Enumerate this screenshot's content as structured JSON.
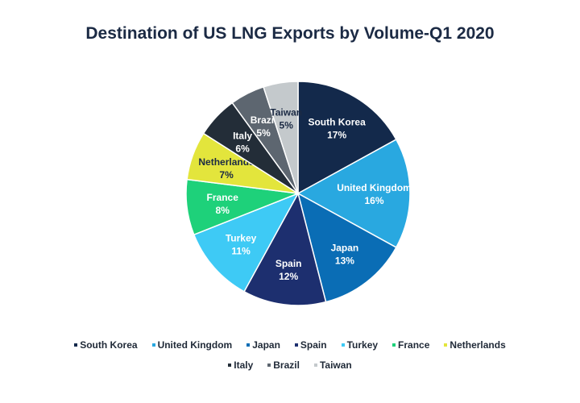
{
  "chart_data": {
    "type": "pie",
    "title": "Destination of US LNG Exports by Volume-Q1 2020",
    "categories": [
      "South Korea",
      "United Kingdom",
      "Japan",
      "Spain",
      "Turkey",
      "France",
      "Netherlands",
      "Italy",
      "Brazil",
      "Taiwan"
    ],
    "values": [
      17,
      16,
      13,
      12,
      11,
      8,
      7,
      6,
      5,
      5
    ],
    "value_labels": [
      "17%",
      "16%",
      "13%",
      "12%",
      "11%",
      "8%",
      "7%",
      "6%",
      "5%",
      "5%"
    ],
    "colors": [
      "#13294b",
      "#29a8e0",
      "#0a6db5",
      "#1d2f6f",
      "#3ecaf5",
      "#1ed17a",
      "#e3e53c",
      "#232d38",
      "#5d6670",
      "#c4c9cc"
    ],
    "legend_position": "bottom",
    "legend_rows": [
      [
        "South Korea",
        "United Kingdom",
        "Japan",
        "Spain",
        "Turkey",
        "France",
        "Netherlands"
      ],
      [
        "Italy",
        "Brazil",
        "Taiwan"
      ]
    ]
  }
}
